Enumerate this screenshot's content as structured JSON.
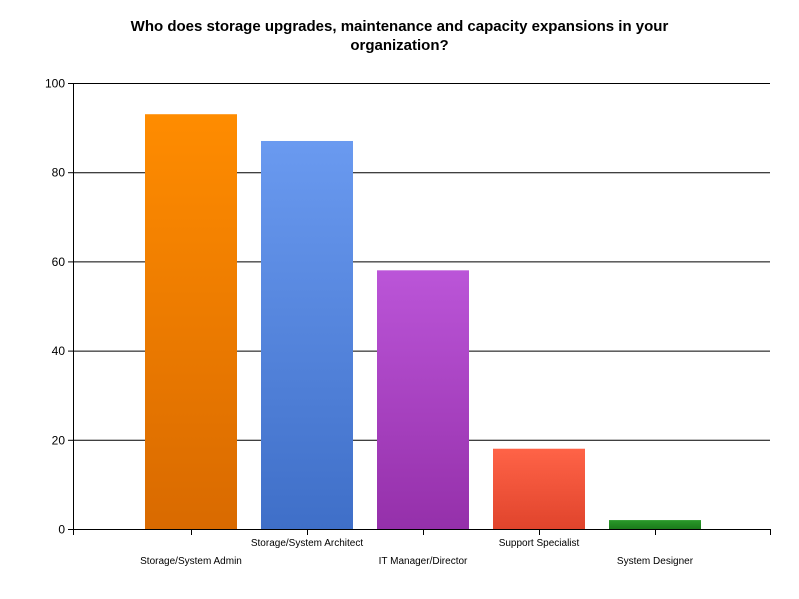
{
  "chart_data": {
    "type": "bar",
    "title_lines": [
      "Who does storage upgrades, maintenance and capacity expansions in your",
      "organization?"
    ],
    "categories": [
      "Storage/System Admin",
      "Storage/System Architect",
      "IT Manager/Director",
      "Support Specialist",
      "System Designer"
    ],
    "values": [
      93,
      87,
      58,
      18,
      2
    ],
    "colors": [
      [
        "#ff8c00",
        "#d96a00"
      ],
      [
        "#6a9af0",
        "#3f6fc8"
      ],
      [
        "#bb55d8",
        "#9530aa"
      ],
      [
        "#ff6347",
        "#e0442c"
      ],
      [
        "#2a9a2a",
        "#1b7a1b"
      ]
    ],
    "xlabel": "",
    "ylabel": "",
    "ylim": [
      0,
      100
    ],
    "yticks": [
      0,
      20,
      40,
      60,
      80,
      100
    ],
    "grid": true,
    "legend": "none"
  }
}
